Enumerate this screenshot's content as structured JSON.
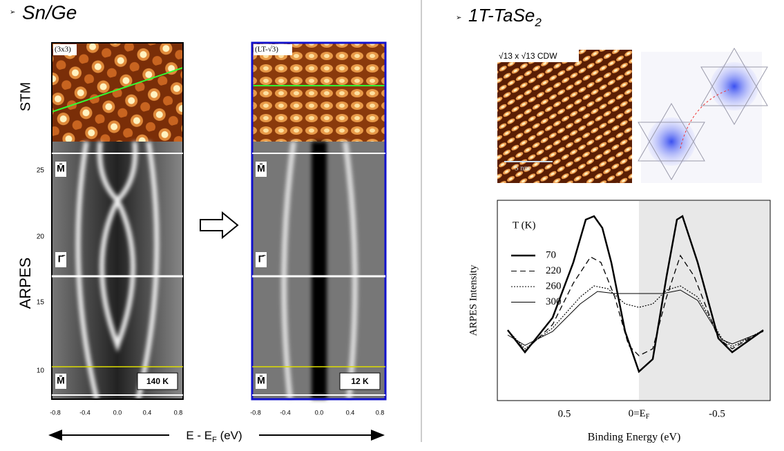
{
  "left": {
    "title": "Sn/Ge",
    "label_stm": "STM",
    "label_arpes": "ARPES",
    "panels": [
      {
        "stm_label": "(3x3)",
        "temp": "140 K",
        "point_top": "M̄",
        "point_mid": "Γ̄",
        "point_bottom": "M̄"
      },
      {
        "stm_label": "(LT-√3)",
        "temp": "12 K",
        "point_top": "M̄",
        "point_mid": "Γ̄",
        "point_bottom": "M̄"
      }
    ],
    "yticks": [
      "25",
      "20",
      "15",
      "10"
    ],
    "xticks": [
      "-0.8",
      "-0.4",
      "0.0",
      "0.4",
      "0.8"
    ],
    "xlabel": {
      "main": "E - E",
      "sub": "F",
      "unit": " (eV)"
    }
  },
  "right": {
    "title": {
      "main": "1T-TaSe",
      "sub": "2"
    },
    "stm_label": "√13 x √13 CDW",
    "scale": "5 nm",
    "plot": {
      "legend_title": "T (K)",
      "legend": [
        "70",
        "220",
        "260",
        "300"
      ],
      "ylabel": "ARPES Intensity",
      "xticks": [
        "0.5",
        {
          "main": "0=E",
          "sub": "F"
        },
        "-0.5"
      ],
      "xlabel": "Binding Energy (eV)"
    }
  }
}
